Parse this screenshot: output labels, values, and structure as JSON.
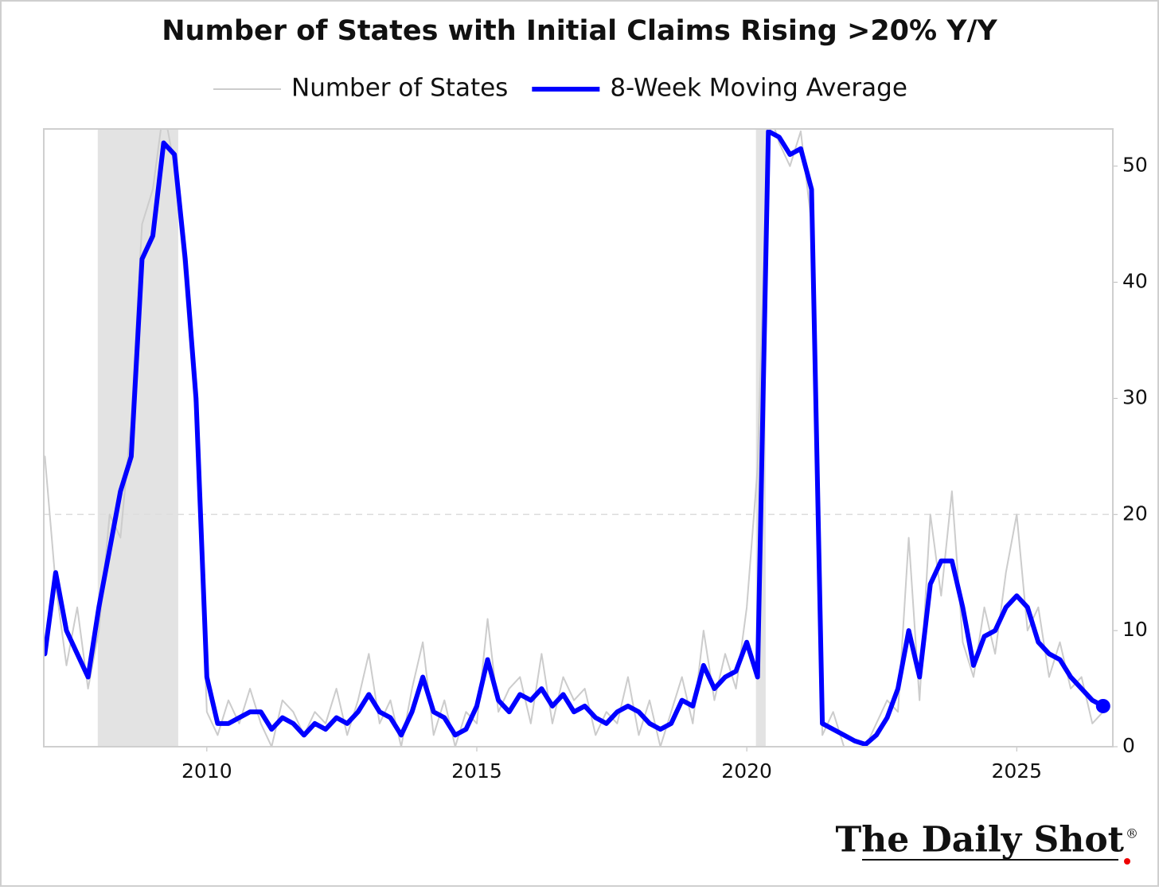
{
  "chart_data": {
    "type": "line",
    "title": "Number of States with Initial Claims Rising >20% Y/Y",
    "source": "The Daily Shot",
    "source_mark": "®",
    "x": [
      2007.0,
      2007.2,
      2007.4,
      2007.6,
      2007.8,
      2008.0,
      2008.2,
      2008.4,
      2008.6,
      2008.8,
      2009.0,
      2009.2,
      2009.4,
      2009.6,
      2009.8,
      2010.0,
      2010.2,
      2010.4,
      2010.6,
      2010.8,
      2011.0,
      2011.2,
      2011.4,
      2011.6,
      2011.8,
      2012.0,
      2012.2,
      2012.4,
      2012.6,
      2012.8,
      2013.0,
      2013.2,
      2013.4,
      2013.6,
      2013.8,
      2014.0,
      2014.2,
      2014.4,
      2014.6,
      2014.8,
      2015.0,
      2015.2,
      2015.4,
      2015.6,
      2015.8,
      2016.0,
      2016.2,
      2016.4,
      2016.6,
      2016.8,
      2017.0,
      2017.2,
      2017.4,
      2017.6,
      2017.8,
      2018.0,
      2018.2,
      2018.4,
      2018.6,
      2018.8,
      2019.0,
      2019.2,
      2019.4,
      2019.6,
      2019.8,
      2020.0,
      2020.2,
      2020.4,
      2020.6,
      2020.8,
      2021.0,
      2021.2,
      2021.4,
      2021.6,
      2021.8,
      2022.0,
      2022.2,
      2022.4,
      2022.6,
      2022.8,
      2023.0,
      2023.2,
      2023.4,
      2023.6,
      2023.8,
      2024.0,
      2024.2,
      2024.4,
      2024.6,
      2024.8,
      2025.0,
      2025.2,
      2025.4,
      2025.6,
      2025.8,
      2026.0,
      2026.2,
      2026.4,
      2026.6
    ],
    "series": [
      {
        "name": "Number of States",
        "color": "#cccccc",
        "width": 2,
        "values": [
          25,
          14,
          7,
          12,
          5,
          10,
          20,
          18,
          28,
          45,
          48,
          55,
          50,
          40,
          28,
          3,
          1,
          4,
          2,
          5,
          2,
          0,
          4,
          3,
          1,
          3,
          2,
          5,
          1,
          4,
          8,
          2,
          4,
          0,
          5,
          9,
          1,
          4,
          0,
          3,
          2,
          11,
          3,
          5,
          6,
          2,
          8,
          2,
          6,
          4,
          5,
          1,
          3,
          2,
          6,
          1,
          4,
          0,
          3,
          6,
          2,
          10,
          4,
          8,
          5,
          12,
          24,
          55,
          52,
          50,
          53,
          45,
          1,
          3,
          0,
          0,
          0,
          2,
          4,
          3,
          18,
          4,
          20,
          13,
          22,
          9,
          6,
          12,
          8,
          15,
          20,
          10,
          12,
          6,
          9,
          5,
          6,
          2,
          3
        ]
      },
      {
        "name": "8-Week Moving Average",
        "color": "#0000ff",
        "width": 6,
        "end_marker": true,
        "values": [
          8,
          15,
          10,
          8,
          6,
          12,
          17,
          22,
          25,
          42,
          44,
          52,
          51,
          42,
          30,
          6,
          2,
          2,
          2.5,
          3,
          3,
          1.5,
          2.5,
          2,
          1,
          2,
          1.5,
          2.5,
          2,
          3,
          4.5,
          3,
          2.5,
          1,
          3,
          6,
          3,
          2.5,
          1,
          1.5,
          3.5,
          7.5,
          4,
          3,
          4.5,
          4,
          5,
          3.5,
          4.5,
          3,
          3.5,
          2.5,
          2,
          3,
          3.5,
          3,
          2,
          1.5,
          2,
          4,
          3.5,
          7,
          5,
          6,
          6.5,
          9,
          6,
          53,
          52.5,
          51,
          51.5,
          48,
          2,
          1.5,
          1,
          0.5,
          0.2,
          1,
          2.5,
          5,
          10,
          6,
          14,
          16,
          16,
          12,
          7,
          9.5,
          10,
          12,
          13,
          12,
          9,
          8,
          7.5,
          6,
          5,
          4,
          3.5
        ]
      }
    ],
    "recessions": [
      [
        2007.98,
        2009.47
      ],
      [
        2020.17,
        2020.35
      ]
    ],
    "recession_color": "#e3e3e3",
    "xlim": [
      2006.98,
      2026.78
    ],
    "xticks": [
      2010,
      2015,
      2020,
      2025
    ],
    "ylim": [
      0,
      53.2
    ],
    "yticks": [
      0,
      10,
      20,
      30,
      40,
      50
    ],
    "y_axis_side": "right",
    "reference_line": 20
  }
}
